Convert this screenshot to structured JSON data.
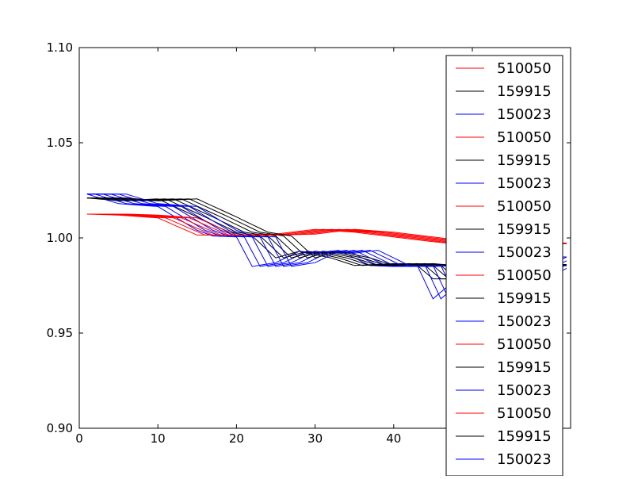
{
  "chart_data": {
    "type": "line",
    "title": "",
    "xlabel": "",
    "ylabel": "",
    "xlim": [
      0,
      62.5
    ],
    "ylim": [
      0.9,
      1.1
    ],
    "x_ticks": [
      "0",
      "10",
      "20",
      "30",
      "40",
      "50"
    ],
    "x_tick_values": [
      0,
      10,
      20,
      30,
      40,
      50
    ],
    "y_ticks": [
      "0.90",
      "0.95",
      "1.00",
      "1.05",
      "1.10"
    ],
    "y_tick_values": [
      0.9,
      0.95,
      1.0,
      1.05,
      1.1
    ],
    "legend_position": "right",
    "grid": false,
    "colors": {
      "510050": "#ff0000",
      "159915": "#000000",
      "150023": "#0000ff"
    },
    "base_curves": {
      "510050": {
        "x": [
          1,
          5,
          10,
          15,
          20,
          25,
          30,
          35,
          40,
          45,
          50,
          55,
          60,
          61
        ],
        "y": [
          1.0125,
          1.012,
          1.0105,
          1.0015,
          1.0015,
          1.002,
          1.0045,
          1.003,
          1.0005,
          0.998,
          0.996,
          0.9975,
          0.997,
          0.997
        ]
      },
      "159915": {
        "x": [
          1,
          5,
          10,
          15,
          19,
          22,
          25,
          28,
          32,
          35,
          40,
          43,
          45,
          48,
          50,
          55,
          60,
          61
        ],
        "y": [
          1.021,
          1.0195,
          1.0205,
          1.011,
          1.003,
          1.001,
          0.9895,
          0.993,
          0.9895,
          0.9855,
          0.9865,
          0.9855,
          0.9785,
          0.9785,
          0.9815,
          0.985,
          0.986,
          0.986
        ]
      },
      "150023": {
        "x": [
          1,
          5,
          10,
          15,
          17,
          20,
          22,
          25,
          28,
          30,
          33,
          37,
          40,
          43,
          45,
          47,
          50,
          55,
          60,
          61
        ],
        "y": [
          1.023,
          1.018,
          1.0165,
          1.004,
          1.001,
          1.0005,
          0.985,
          0.987,
          0.993,
          0.992,
          0.9935,
          0.9855,
          0.985,
          0.9855,
          0.968,
          0.975,
          0.97,
          0.98,
          0.99,
          0.99
        ]
      }
    },
    "series_shifts": [
      0,
      1,
      2,
      3,
      4,
      5
    ],
    "series": [
      {
        "name": "510050",
        "color": "#ff0000",
        "shift": 0
      },
      {
        "name": "159915",
        "color": "#000000",
        "shift": 0
      },
      {
        "name": "150023",
        "color": "#0000ff",
        "shift": 0
      },
      {
        "name": "510050",
        "color": "#ff0000",
        "shift": 1
      },
      {
        "name": "159915",
        "color": "#000000",
        "shift": 1
      },
      {
        "name": "150023",
        "color": "#0000ff",
        "shift": 1
      },
      {
        "name": "510050",
        "color": "#ff0000",
        "shift": 2
      },
      {
        "name": "159915",
        "color": "#000000",
        "shift": 2
      },
      {
        "name": "150023",
        "color": "#0000ff",
        "shift": 2
      },
      {
        "name": "510050",
        "color": "#ff0000",
        "shift": 3
      },
      {
        "name": "159915",
        "color": "#000000",
        "shift": 3
      },
      {
        "name": "150023",
        "color": "#0000ff",
        "shift": 3
      },
      {
        "name": "510050",
        "color": "#ff0000",
        "shift": 4
      },
      {
        "name": "159915",
        "color": "#000000",
        "shift": 4
      },
      {
        "name": "150023",
        "color": "#0000ff",
        "shift": 4
      },
      {
        "name": "510050",
        "color": "#ff0000",
        "shift": 5
      },
      {
        "name": "159915",
        "color": "#000000",
        "shift": 5
      },
      {
        "name": "150023",
        "color": "#0000ff",
        "shift": 5
      }
    ]
  }
}
